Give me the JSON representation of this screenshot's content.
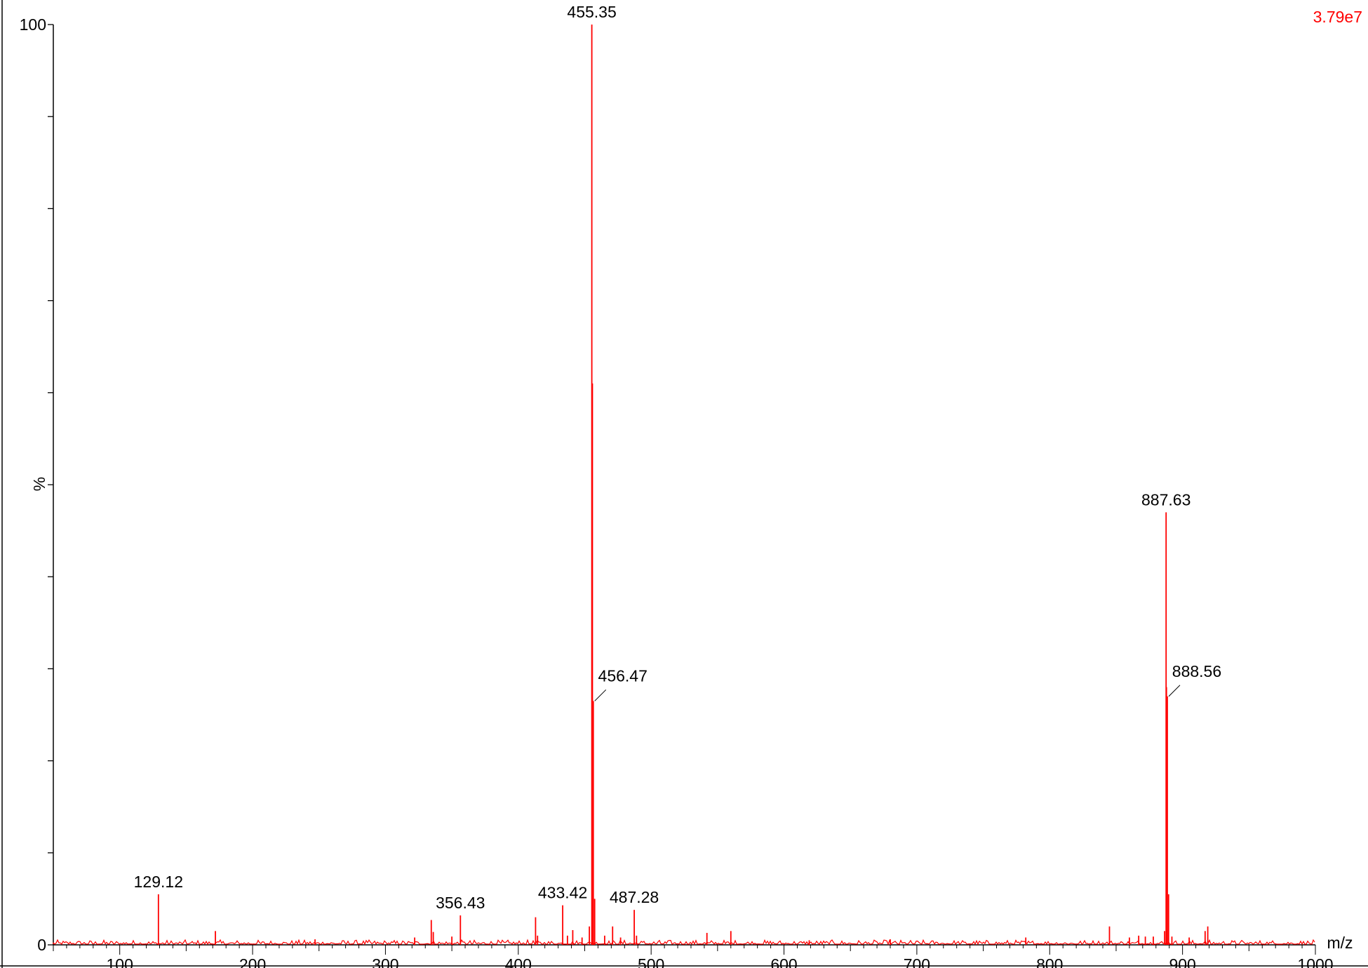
{
  "chart_data": {
    "type": "line",
    "title": "",
    "intensity_label": "3.79e7",
    "xlabel": "m/z",
    "ylabel": "%",
    "xlim": [
      50,
      1000
    ],
    "ylim": [
      0,
      100
    ],
    "x_ticks": [
      100,
      200,
      300,
      400,
      500,
      600,
      700,
      800,
      900,
      1000
    ],
    "y_ticks": [
      0,
      100
    ],
    "grid": false,
    "legend": "none",
    "colors": {
      "trace": "#ff0000",
      "axes": "#000000",
      "labels": "#000000"
    },
    "peaks": [
      {
        "x": 129.12,
        "y": 5.5,
        "label": "129.12"
      },
      {
        "x": 172.0,
        "y": 1.5
      },
      {
        "x": 247.0,
        "y": 0.6
      },
      {
        "x": 322.0,
        "y": 0.8
      },
      {
        "x": 334.5,
        "y": 2.7
      },
      {
        "x": 336.0,
        "y": 1.4
      },
      {
        "x": 350.0,
        "y": 0.9
      },
      {
        "x": 356.43,
        "y": 3.2,
        "label": "356.43"
      },
      {
        "x": 413.0,
        "y": 3.0
      },
      {
        "x": 414.5,
        "y": 1.0
      },
      {
        "x": 433.42,
        "y": 4.3,
        "label": "433.42"
      },
      {
        "x": 437.0,
        "y": 1.0
      },
      {
        "x": 441.0,
        "y": 1.6
      },
      {
        "x": 448.0,
        "y": 0.8
      },
      {
        "x": 453.5,
        "y": 2.0
      },
      {
        "x": 455.35,
        "y": 100.0,
        "label": "455.35"
      },
      {
        "x": 455.8,
        "y": 61.0
      },
      {
        "x": 456.47,
        "y": 26.5,
        "label": "456.47"
      },
      {
        "x": 457.5,
        "y": 5.0
      },
      {
        "x": 465.0,
        "y": 1.0
      },
      {
        "x": 471.0,
        "y": 2.0
      },
      {
        "x": 477.0,
        "y": 0.8
      },
      {
        "x": 487.28,
        "y": 3.8,
        "label": "487.28"
      },
      {
        "x": 489.0,
        "y": 1.0
      },
      {
        "x": 542.0,
        "y": 1.3
      },
      {
        "x": 560.0,
        "y": 1.5
      },
      {
        "x": 619.0,
        "y": 0.5
      },
      {
        "x": 680.0,
        "y": 0.6
      },
      {
        "x": 782.0,
        "y": 0.8
      },
      {
        "x": 845.0,
        "y": 2.0
      },
      {
        "x": 860.0,
        "y": 0.8
      },
      {
        "x": 867.0,
        "y": 1.0
      },
      {
        "x": 872.0,
        "y": 0.9
      },
      {
        "x": 878.0,
        "y": 0.9
      },
      {
        "x": 886.5,
        "y": 1.5
      },
      {
        "x": 887.63,
        "y": 47.0,
        "label": "887.63"
      },
      {
        "x": 887.9,
        "y": 28.0
      },
      {
        "x": 888.56,
        "y": 27.0,
        "label": "888.56"
      },
      {
        "x": 889.5,
        "y": 5.5
      },
      {
        "x": 892.0,
        "y": 0.9
      },
      {
        "x": 905.0,
        "y": 0.8
      },
      {
        "x": 917.0,
        "y": 1.5
      },
      {
        "x": 919.0,
        "y": 2.0
      }
    ]
  }
}
